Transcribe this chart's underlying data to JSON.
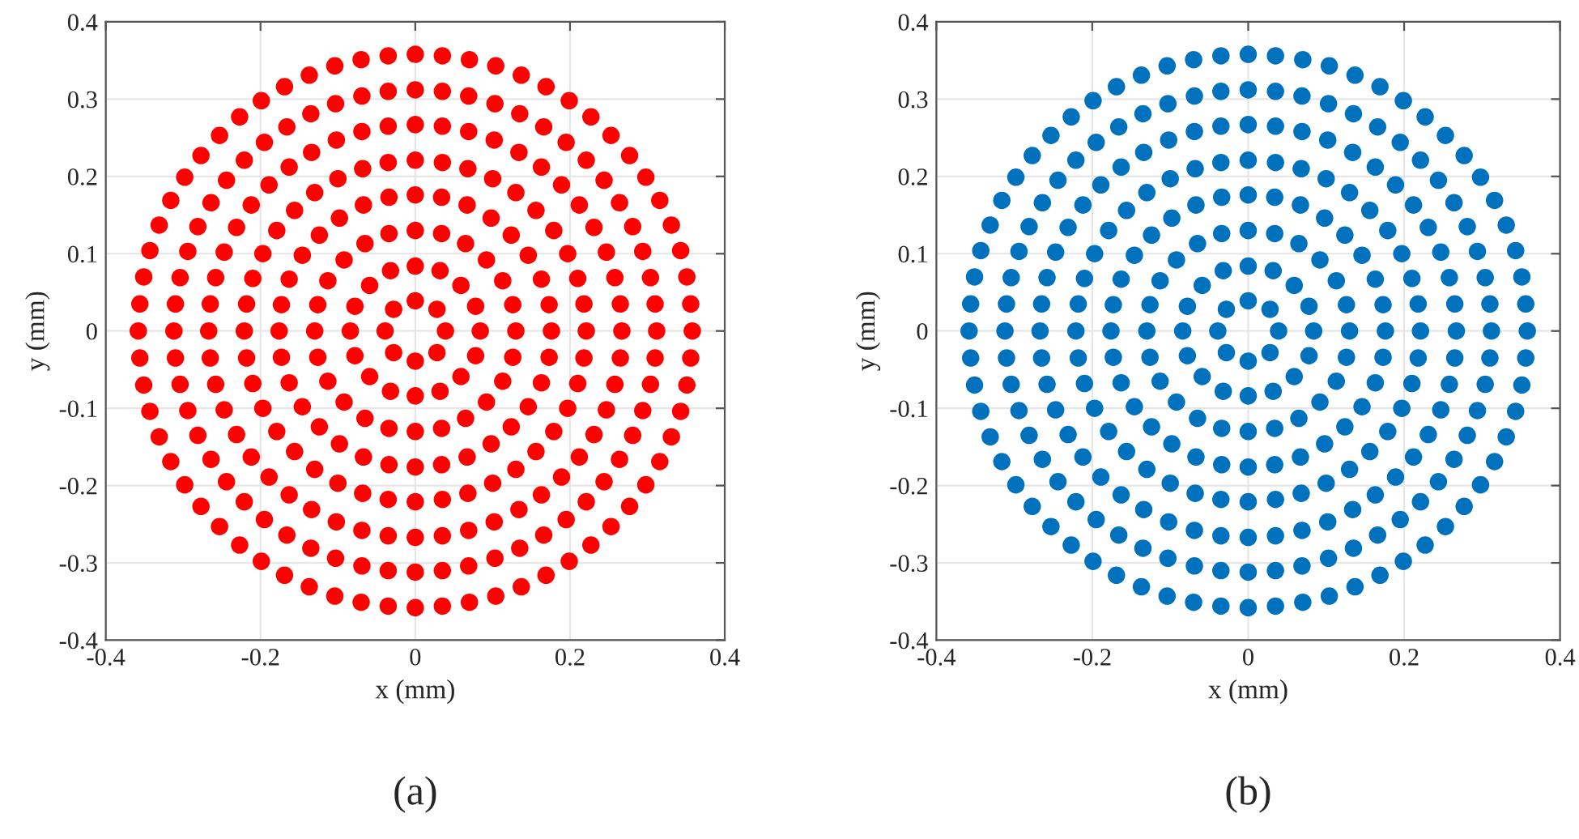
{
  "chart_data": [
    {
      "type": "scatter",
      "xlabel": "x (mm)",
      "ylabel": "y (mm)",
      "annotations": [
        "(a)"
      ],
      "marker": "circle",
      "grid": true,
      "legend": false,
      "xlim": [
        -0.4,
        0.4
      ],
      "ylim": [
        -0.4,
        0.4
      ],
      "xticks": [
        -0.4,
        -0.2,
        0,
        0.2,
        0.4
      ],
      "yticks": [
        -0.4,
        -0.3,
        -0.2,
        -0.1,
        0,
        0.1,
        0.2,
        0.3,
        0.4
      ],
      "series": [
        {
          "color": "#ff0000",
          "x": [
            0.039,
            0.028,
            0.084,
            0.078,
            0.059,
            0.032,
            0.13,
            0.126,
            0.113,
            0.092,
            0.065,
            0.034,
            0.176,
            0.173,
            0.163,
            0.146,
            0.124,
            0.098,
            0.067,
            0.034,
            0.221,
            0.218,
            0.21,
            0.197,
            0.179,
            0.156,
            0.13,
            0.1,
            0.068,
            0.035,
            0.267,
            0.265,
            0.258,
            0.247,
            0.231,
            0.212,
            0.189,
            0.163,
            0.134,
            0.102,
            0.069,
            0.035,
            0.312,
            0.31,
            0.304,
            0.294,
            0.281,
            0.264,
            0.244,
            0.221,
            0.195,
            0.166,
            0.135,
            0.103,
            0.069,
            0.035,
            0.358,
            0.356,
            0.351,
            0.343,
            0.331,
            0.316,
            0.298,
            0.277,
            0.253,
            0.227,
            0.199,
            0.169,
            0.137,
            0.104,
            0.07,
            0.035,
            0,
            -0.028,
            0,
            -0.032,
            -0.059,
            -0.078,
            0,
            -0.034,
            -0.065,
            -0.092,
            -0.113,
            -0.126,
            0,
            -0.034,
            -0.067,
            -0.098,
            -0.124,
            -0.146,
            -0.163,
            -0.173,
            0,
            -0.035,
            -0.068,
            -0.1,
            -0.13,
            -0.156,
            -0.179,
            -0.197,
            -0.21,
            -0.218,
            0,
            -0.035,
            -0.069,
            -0.102,
            -0.134,
            -0.163,
            -0.189,
            -0.212,
            -0.231,
            -0.247,
            -0.258,
            -0.265,
            0,
            -0.035,
            -0.069,
            -0.103,
            -0.135,
            -0.166,
            -0.195,
            -0.221,
            -0.244,
            -0.264,
            -0.281,
            -0.294,
            -0.304,
            -0.31,
            0,
            -0.035,
            -0.07,
            -0.104,
            -0.137,
            -0.169,
            -0.199,
            -0.227,
            -0.253,
            -0.277,
            -0.298,
            -0.316,
            -0.331,
            -0.343,
            -0.351,
            -0.356,
            -0.039,
            -0.028,
            -0.084,
            -0.078,
            -0.059,
            -0.032,
            -0.13,
            -0.126,
            -0.113,
            -0.092,
            -0.065,
            -0.034,
            -0.176,
            -0.173,
            -0.163,
            -0.146,
            -0.124,
            -0.098,
            -0.067,
            -0.034,
            -0.221,
            -0.218,
            -0.21,
            -0.197,
            -0.179,
            -0.156,
            -0.13,
            -0.1,
            -0.068,
            -0.035,
            -0.267,
            -0.265,
            -0.258,
            -0.247,
            -0.231,
            -0.212,
            -0.189,
            -0.163,
            -0.134,
            -0.102,
            -0.069,
            -0.035,
            -0.312,
            -0.31,
            -0.304,
            -0.294,
            -0.281,
            -0.264,
            -0.244,
            -0.221,
            -0.195,
            -0.166,
            -0.135,
            -0.103,
            -0.069,
            -0.035,
            -0.358,
            -0.356,
            -0.351,
            -0.343,
            -0.331,
            -0.316,
            -0.298,
            -0.277,
            -0.253,
            -0.227,
            -0.199,
            -0.169,
            -0.137,
            -0.104,
            -0.07,
            -0.035,
            0,
            0.028,
            0,
            0.032,
            0.059,
            0.078,
            0,
            0.034,
            0.065,
            0.092,
            0.113,
            0.126,
            0,
            0.034,
            0.067,
            0.098,
            0.124,
            0.146,
            0.163,
            0.173,
            0,
            0.035,
            0.068,
            0.1,
            0.13,
            0.156,
            0.179,
            0.197,
            0.21,
            0.218,
            0,
            0.035,
            0.069,
            0.102,
            0.134,
            0.163,
            0.189,
            0.212,
            0.231,
            0.247,
            0.258,
            0.265,
            0,
            0.035,
            0.069,
            0.103,
            0.135,
            0.166,
            0.195,
            0.221,
            0.244,
            0.264,
            0.281,
            0.294,
            0.304,
            0.31,
            0,
            0.035,
            0.07,
            0.104,
            0.137,
            0.169,
            0.199,
            0.227,
            0.253,
            0.277,
            0.298,
            0.316,
            0.331,
            0.343,
            0.351,
            0.356
          ],
          "values": [
            0,
            0.028,
            0,
            0.032,
            0.059,
            0.078,
            0,
            0.034,
            0.065,
            0.092,
            0.113,
            0.126,
            0,
            0.034,
            0.067,
            0.098,
            0.124,
            0.146,
            0.163,
            0.173,
            0,
            0.035,
            0.068,
            0.1,
            0.13,
            0.156,
            0.179,
            0.197,
            0.21,
            0.218,
            0,
            0.035,
            0.069,
            0.102,
            0.134,
            0.163,
            0.189,
            0.212,
            0.231,
            0.247,
            0.258,
            0.265,
            0,
            0.035,
            0.069,
            0.103,
            0.135,
            0.166,
            0.195,
            0.221,
            0.244,
            0.264,
            0.281,
            0.294,
            0.304,
            0.31,
            0,
            0.035,
            0.07,
            0.104,
            0.137,
            0.169,
            0.199,
            0.227,
            0.253,
            0.277,
            0.298,
            0.316,
            0.331,
            0.343,
            0.351,
            0.356,
            0.039,
            0.028,
            0.084,
            0.078,
            0.059,
            0.032,
            0.13,
            0.126,
            0.113,
            0.092,
            0.065,
            0.034,
            0.176,
            0.173,
            0.163,
            0.146,
            0.124,
            0.098,
            0.067,
            0.034,
            0.221,
            0.218,
            0.21,
            0.197,
            0.179,
            0.156,
            0.13,
            0.1,
            0.068,
            0.035,
            0.267,
            0.265,
            0.258,
            0.247,
            0.231,
            0.212,
            0.189,
            0.163,
            0.134,
            0.102,
            0.069,
            0.035,
            0.312,
            0.31,
            0.304,
            0.294,
            0.281,
            0.264,
            0.244,
            0.221,
            0.195,
            0.166,
            0.135,
            0.103,
            0.069,
            0.035,
            0.358,
            0.356,
            0.351,
            0.343,
            0.331,
            0.316,
            0.298,
            0.277,
            0.253,
            0.227,
            0.199,
            0.169,
            0.137,
            0.104,
            0.07,
            0.035,
            0,
            -0.028,
            0,
            -0.032,
            -0.059,
            -0.078,
            0,
            -0.034,
            -0.065,
            -0.092,
            -0.113,
            -0.126,
            0,
            -0.034,
            -0.067,
            -0.098,
            -0.124,
            -0.146,
            -0.163,
            -0.173,
            0,
            -0.035,
            -0.068,
            -0.1,
            -0.13,
            -0.156,
            -0.179,
            -0.197,
            -0.21,
            -0.218,
            0,
            -0.035,
            -0.069,
            -0.102,
            -0.134,
            -0.163,
            -0.189,
            -0.212,
            -0.231,
            -0.247,
            -0.258,
            -0.265,
            0,
            -0.035,
            -0.069,
            -0.103,
            -0.135,
            -0.166,
            -0.195,
            -0.221,
            -0.244,
            -0.264,
            -0.281,
            -0.294,
            -0.304,
            -0.31,
            0,
            -0.035,
            -0.07,
            -0.104,
            -0.137,
            -0.169,
            -0.199,
            -0.227,
            -0.253,
            -0.277,
            -0.298,
            -0.316,
            -0.331,
            -0.343,
            -0.351,
            -0.356,
            -0.039,
            -0.028,
            -0.084,
            -0.078,
            -0.059,
            -0.032,
            -0.13,
            -0.126,
            -0.113,
            -0.092,
            -0.065,
            -0.034,
            -0.176,
            -0.173,
            -0.163,
            -0.146,
            -0.124,
            -0.098,
            -0.067,
            -0.034,
            -0.221,
            -0.218,
            -0.21,
            -0.197,
            -0.179,
            -0.156,
            -0.13,
            -0.1,
            -0.068,
            -0.035,
            -0.267,
            -0.265,
            -0.258,
            -0.247,
            -0.231,
            -0.212,
            -0.189,
            -0.163,
            -0.134,
            -0.102,
            -0.069,
            -0.035,
            -0.312,
            -0.31,
            -0.304,
            -0.294,
            -0.281,
            -0.264,
            -0.244,
            -0.221,
            -0.195,
            -0.166,
            -0.135,
            -0.103,
            -0.069,
            -0.035,
            -0.358,
            -0.356,
            -0.351,
            -0.343,
            -0.331,
            -0.316,
            -0.298,
            -0.277,
            -0.253,
            -0.227,
            -0.199,
            -0.169,
            -0.137,
            -0.104,
            -0.07,
            -0.035
          ]
        }
      ]
    },
    {
      "type": "scatter",
      "xlabel": "x (mm)",
      "ylabel": "y (mm)",
      "annotations": [
        "(b)"
      ],
      "marker": "circle",
      "grid": true,
      "legend": false,
      "xlim": [
        -0.4,
        0.4
      ],
      "ylim": [
        -0.4,
        0.4
      ],
      "xticks": [
        -0.4,
        -0.2,
        0,
        0.2,
        0.4
      ],
      "yticks": [
        -0.4,
        -0.3,
        -0.2,
        -0.1,
        0,
        0.1,
        0.2,
        0.3,
        0.4
      ],
      "series": [
        {
          "color": "#0072bd",
          "x": [
            0.039,
            0.028,
            0.084,
            0.078,
            0.059,
            0.032,
            0.13,
            0.126,
            0.113,
            0.092,
            0.065,
            0.034,
            0.176,
            0.173,
            0.163,
            0.146,
            0.124,
            0.098,
            0.067,
            0.034,
            0.221,
            0.218,
            0.21,
            0.197,
            0.179,
            0.156,
            0.13,
            0.1,
            0.068,
            0.035,
            0.267,
            0.265,
            0.258,
            0.247,
            0.231,
            0.212,
            0.189,
            0.163,
            0.134,
            0.102,
            0.069,
            0.035,
            0.312,
            0.31,
            0.304,
            0.294,
            0.281,
            0.264,
            0.244,
            0.221,
            0.195,
            0.166,
            0.135,
            0.103,
            0.069,
            0.035,
            0.358,
            0.356,
            0.351,
            0.343,
            0.331,
            0.316,
            0.298,
            0.277,
            0.253,
            0.227,
            0.199,
            0.169,
            0.137,
            0.104,
            0.07,
            0.035,
            0,
            -0.028,
            0,
            -0.032,
            -0.059,
            -0.078,
            0,
            -0.034,
            -0.065,
            -0.092,
            -0.113,
            -0.126,
            0,
            -0.034,
            -0.067,
            -0.098,
            -0.124,
            -0.146,
            -0.163,
            -0.173,
            0,
            -0.035,
            -0.068,
            -0.1,
            -0.13,
            -0.156,
            -0.179,
            -0.197,
            -0.21,
            -0.218,
            0,
            -0.035,
            -0.069,
            -0.102,
            -0.134,
            -0.163,
            -0.189,
            -0.212,
            -0.231,
            -0.247,
            -0.258,
            -0.265,
            0,
            -0.035,
            -0.069,
            -0.103,
            -0.135,
            -0.166,
            -0.195,
            -0.221,
            -0.244,
            -0.264,
            -0.281,
            -0.294,
            -0.304,
            -0.31,
            0,
            -0.035,
            -0.07,
            -0.104,
            -0.137,
            -0.169,
            -0.199,
            -0.227,
            -0.253,
            -0.277,
            -0.298,
            -0.316,
            -0.331,
            -0.343,
            -0.351,
            -0.356,
            -0.039,
            -0.028,
            -0.084,
            -0.078,
            -0.059,
            -0.032,
            -0.13,
            -0.126,
            -0.113,
            -0.092,
            -0.065,
            -0.034,
            -0.176,
            -0.173,
            -0.163,
            -0.146,
            -0.124,
            -0.098,
            -0.067,
            -0.034,
            -0.221,
            -0.218,
            -0.21,
            -0.197,
            -0.179,
            -0.156,
            -0.13,
            -0.1,
            -0.068,
            -0.035,
            -0.267,
            -0.265,
            -0.258,
            -0.247,
            -0.231,
            -0.212,
            -0.189,
            -0.163,
            -0.134,
            -0.102,
            -0.069,
            -0.035,
            -0.312,
            -0.31,
            -0.304,
            -0.294,
            -0.281,
            -0.264,
            -0.244,
            -0.221,
            -0.195,
            -0.166,
            -0.135,
            -0.103,
            -0.069,
            -0.035,
            -0.358,
            -0.356,
            -0.351,
            -0.343,
            -0.331,
            -0.316,
            -0.298,
            -0.277,
            -0.253,
            -0.227,
            -0.199,
            -0.169,
            -0.137,
            -0.104,
            -0.07,
            -0.035,
            0,
            0.028,
            0,
            0.032,
            0.059,
            0.078,
            0,
            0.034,
            0.065,
            0.092,
            0.113,
            0.126,
            0,
            0.034,
            0.067,
            0.098,
            0.124,
            0.146,
            0.163,
            0.173,
            0,
            0.035,
            0.068,
            0.1,
            0.13,
            0.156,
            0.179,
            0.197,
            0.21,
            0.218,
            0,
            0.035,
            0.069,
            0.102,
            0.134,
            0.163,
            0.189,
            0.212,
            0.231,
            0.247,
            0.258,
            0.265,
            0,
            0.035,
            0.069,
            0.103,
            0.135,
            0.166,
            0.195,
            0.221,
            0.244,
            0.264,
            0.281,
            0.294,
            0.304,
            0.31,
            0,
            0.035,
            0.07,
            0.104,
            0.137,
            0.169,
            0.199,
            0.227,
            0.253,
            0.277,
            0.298,
            0.316,
            0.331,
            0.343,
            0.351,
            0.356
          ],
          "values": [
            0,
            0.028,
            0,
            0.032,
            0.059,
            0.078,
            0,
            0.034,
            0.065,
            0.092,
            0.113,
            0.126,
            0,
            0.034,
            0.067,
            0.098,
            0.124,
            0.146,
            0.163,
            0.173,
            0,
            0.035,
            0.068,
            0.1,
            0.13,
            0.156,
            0.179,
            0.197,
            0.21,
            0.218,
            0,
            0.035,
            0.069,
            0.102,
            0.134,
            0.163,
            0.189,
            0.212,
            0.231,
            0.247,
            0.258,
            0.265,
            0,
            0.035,
            0.069,
            0.103,
            0.135,
            0.166,
            0.195,
            0.221,
            0.244,
            0.264,
            0.281,
            0.294,
            0.304,
            0.31,
            0,
            0.035,
            0.07,
            0.104,
            0.137,
            0.169,
            0.199,
            0.227,
            0.253,
            0.277,
            0.298,
            0.316,
            0.331,
            0.343,
            0.351,
            0.356,
            0.039,
            0.028,
            0.084,
            0.078,
            0.059,
            0.032,
            0.13,
            0.126,
            0.113,
            0.092,
            0.065,
            0.034,
            0.176,
            0.173,
            0.163,
            0.146,
            0.124,
            0.098,
            0.067,
            0.034,
            0.221,
            0.218,
            0.21,
            0.197,
            0.179,
            0.156,
            0.13,
            0.1,
            0.068,
            0.035,
            0.267,
            0.265,
            0.258,
            0.247,
            0.231,
            0.212,
            0.189,
            0.163,
            0.134,
            0.102,
            0.069,
            0.035,
            0.312,
            0.31,
            0.304,
            0.294,
            0.281,
            0.264,
            0.244,
            0.221,
            0.195,
            0.166,
            0.135,
            0.103,
            0.069,
            0.035,
            0.358,
            0.356,
            0.351,
            0.343,
            0.331,
            0.316,
            0.298,
            0.277,
            0.253,
            0.227,
            0.199,
            0.169,
            0.137,
            0.104,
            0.07,
            0.035,
            0,
            -0.028,
            0,
            -0.032,
            -0.059,
            -0.078,
            0,
            -0.034,
            -0.065,
            -0.092,
            -0.113,
            -0.126,
            0,
            -0.034,
            -0.067,
            -0.098,
            -0.124,
            -0.146,
            -0.163,
            -0.173,
            0,
            -0.035,
            -0.068,
            -0.1,
            -0.13,
            -0.156,
            -0.179,
            -0.197,
            -0.21,
            -0.218,
            0,
            -0.035,
            -0.069,
            -0.102,
            -0.134,
            -0.163,
            -0.189,
            -0.212,
            -0.231,
            -0.247,
            -0.258,
            -0.265,
            0,
            -0.035,
            -0.069,
            -0.103,
            -0.135,
            -0.166,
            -0.195,
            -0.221,
            -0.244,
            -0.264,
            -0.281,
            -0.294,
            -0.304,
            -0.31,
            0,
            -0.035,
            -0.07,
            -0.104,
            -0.137,
            -0.169,
            -0.199,
            -0.227,
            -0.253,
            -0.277,
            -0.298,
            -0.316,
            -0.331,
            -0.343,
            -0.351,
            -0.356,
            -0.039,
            -0.028,
            -0.084,
            -0.078,
            -0.059,
            -0.032,
            -0.13,
            -0.126,
            -0.113,
            -0.092,
            -0.065,
            -0.034,
            -0.176,
            -0.173,
            -0.163,
            -0.146,
            -0.124,
            -0.098,
            -0.067,
            -0.034,
            -0.221,
            -0.218,
            -0.21,
            -0.197,
            -0.179,
            -0.156,
            -0.13,
            -0.1,
            -0.068,
            -0.035,
            -0.267,
            -0.265,
            -0.258,
            -0.247,
            -0.231,
            -0.212,
            -0.189,
            -0.163,
            -0.134,
            -0.102,
            -0.069,
            -0.035,
            -0.312,
            -0.31,
            -0.304,
            -0.294,
            -0.281,
            -0.264,
            -0.244,
            -0.221,
            -0.195,
            -0.166,
            -0.135,
            -0.103,
            -0.069,
            -0.035,
            -0.358,
            -0.356,
            -0.351,
            -0.343,
            -0.331,
            -0.316,
            -0.298,
            -0.277,
            -0.253,
            -0.227,
            -0.199,
            -0.169,
            -0.137,
            -0.104,
            -0.07,
            -0.035
          ]
        }
      ]
    }
  ]
}
